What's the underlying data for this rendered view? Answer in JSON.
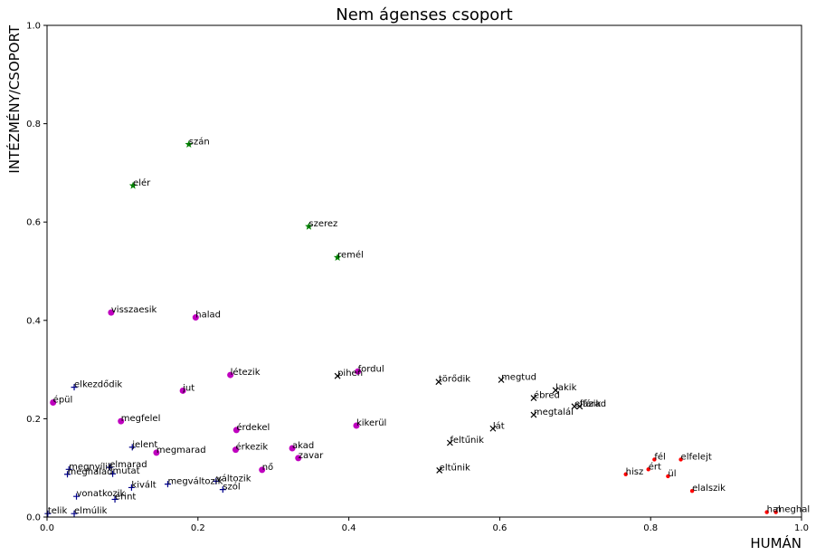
{
  "chart_data": {
    "type": "scatter",
    "title": "Nem ágenses csoport",
    "xlabel": "HUMÁN",
    "ylabel": "INTÉZMÉNY/CSOPORT",
    "xlim": [
      0,
      1
    ],
    "ylim": [
      0,
      1
    ],
    "xticks": [
      "0.0",
      "0.2",
      "0.4",
      "0.6",
      "0.8",
      "1.0"
    ],
    "yticks": [
      "0.0",
      "0.2",
      "0.4",
      "0.6",
      "0.8",
      "1.0"
    ],
    "grid": false,
    "series": [
      {
        "marker": "star",
        "color": "#008000",
        "points": [
          {
            "label": "szán",
            "x": 0.188,
            "y": 0.758
          },
          {
            "label": "elér",
            "x": 0.114,
            "y": 0.674
          },
          {
            "label": "szerez",
            "x": 0.347,
            "y": 0.591
          },
          {
            "label": "remél",
            "x": 0.385,
            "y": 0.528
          }
        ]
      },
      {
        "marker": "circle",
        "color": "#bf00bf",
        "points": [
          {
            "label": "visszaesik",
            "x": 0.085,
            "y": 0.416
          },
          {
            "label": "halad",
            "x": 0.197,
            "y": 0.406
          },
          {
            "label": "létezik",
            "x": 0.243,
            "y": 0.289
          },
          {
            "label": "fordul",
            "x": 0.412,
            "y": 0.296
          },
          {
            "label": "jut",
            "x": 0.18,
            "y": 0.257
          },
          {
            "label": "épül",
            "x": 0.008,
            "y": 0.233
          },
          {
            "label": "megfelel",
            "x": 0.098,
            "y": 0.195
          },
          {
            "label": "kikerül",
            "x": 0.41,
            "y": 0.186
          },
          {
            "label": "érdekel",
            "x": 0.251,
            "y": 0.177
          },
          {
            "label": "akad",
            "x": 0.325,
            "y": 0.14
          },
          {
            "label": "érkezik",
            "x": 0.25,
            "y": 0.137
          },
          {
            "label": "megmarad",
            "x": 0.145,
            "y": 0.131
          },
          {
            "label": "zavar",
            "x": 0.333,
            "y": 0.12
          },
          {
            "label": "nő",
            "x": 0.285,
            "y": 0.096
          }
        ]
      },
      {
        "marker": "plus",
        "color": "#00008b",
        "points": [
          {
            "label": "elkezdődik",
            "x": 0.036,
            "y": 0.264
          },
          {
            "label": "jelent",
            "x": 0.113,
            "y": 0.142
          },
          {
            "label": "megnyílik",
            "x": 0.029,
            "y": 0.097
          },
          {
            "label": "elmarad",
            "x": 0.083,
            "y": 0.101
          },
          {
            "label": "meghalad",
            "x": 0.027,
            "y": 0.087
          },
          {
            "label": "mutat",
            "x": 0.087,
            "y": 0.088
          },
          {
            "label": "megváltozik",
            "x": 0.16,
            "y": 0.067
          },
          {
            "label": "változik",
            "x": 0.224,
            "y": 0.073
          },
          {
            "label": "kivált",
            "x": 0.112,
            "y": 0.06
          },
          {
            "label": "szól",
            "x": 0.233,
            "y": 0.056
          },
          {
            "label": "vonatkozik",
            "x": 0.039,
            "y": 0.042
          },
          {
            "label": "érint",
            "x": 0.09,
            "y": 0.036
          },
          {
            "label": "telik",
            "x": 0.001,
            "y": 0.007
          },
          {
            "label": "elmúlik",
            "x": 0.036,
            "y": 0.007
          }
        ]
      },
      {
        "marker": "x",
        "color": "#000000",
        "points": [
          {
            "label": "pihen",
            "x": 0.385,
            "y": 0.287
          },
          {
            "label": "törődik",
            "x": 0.519,
            "y": 0.275
          },
          {
            "label": "megtud",
            "x": 0.602,
            "y": 0.279
          },
          {
            "label": "lakik",
            "x": 0.674,
            "y": 0.258
          },
          {
            "label": "ébred",
            "x": 0.645,
            "y": 0.242
          },
          {
            "label": "elfárad",
            "x": 0.699,
            "y": 0.225
          },
          {
            "label": "fázik",
            "x": 0.706,
            "y": 0.225
          },
          {
            "label": "megtalál",
            "x": 0.645,
            "y": 0.208
          },
          {
            "label": "lát",
            "x": 0.591,
            "y": 0.18
          },
          {
            "label": "feltűnik",
            "x": 0.534,
            "y": 0.151
          },
          {
            "label": "eltűnik",
            "x": 0.52,
            "y": 0.095
          }
        ]
      },
      {
        "marker": "dot",
        "color": "#ff0000",
        "points": [
          {
            "label": "fél",
            "x": 0.805,
            "y": 0.117
          },
          {
            "label": "elfelejt",
            "x": 0.84,
            "y": 0.117
          },
          {
            "label": "ért",
            "x": 0.797,
            "y": 0.097
          },
          {
            "label": "hisz",
            "x": 0.767,
            "y": 0.087
          },
          {
            "label": "ül",
            "x": 0.823,
            "y": 0.083
          },
          {
            "label": "elalszik",
            "x": 0.855,
            "y": 0.053
          },
          {
            "label": "hal",
            "x": 0.954,
            "y": 0.01
          },
          {
            "label": "meghal",
            "x": 0.966,
            "y": 0.01
          }
        ]
      }
    ]
  }
}
